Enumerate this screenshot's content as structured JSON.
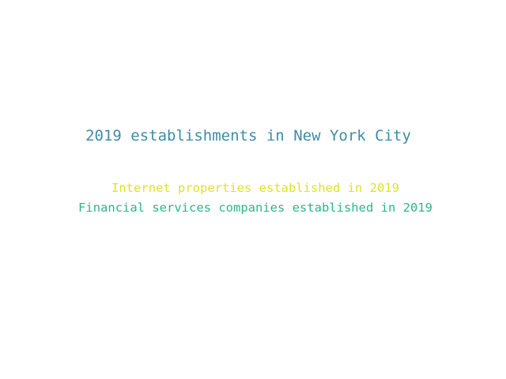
{
  "diagram": {
    "title": "2019 establishments in New York City",
    "items": [
      {
        "label": "Internet properties established in 2019",
        "color": "#dfe12a"
      },
      {
        "label": "Financial services companies established in 2019",
        "color": "#2fb48a"
      }
    ]
  },
  "colors": {
    "title": "#3f8ca5",
    "background": "#ffffff"
  }
}
